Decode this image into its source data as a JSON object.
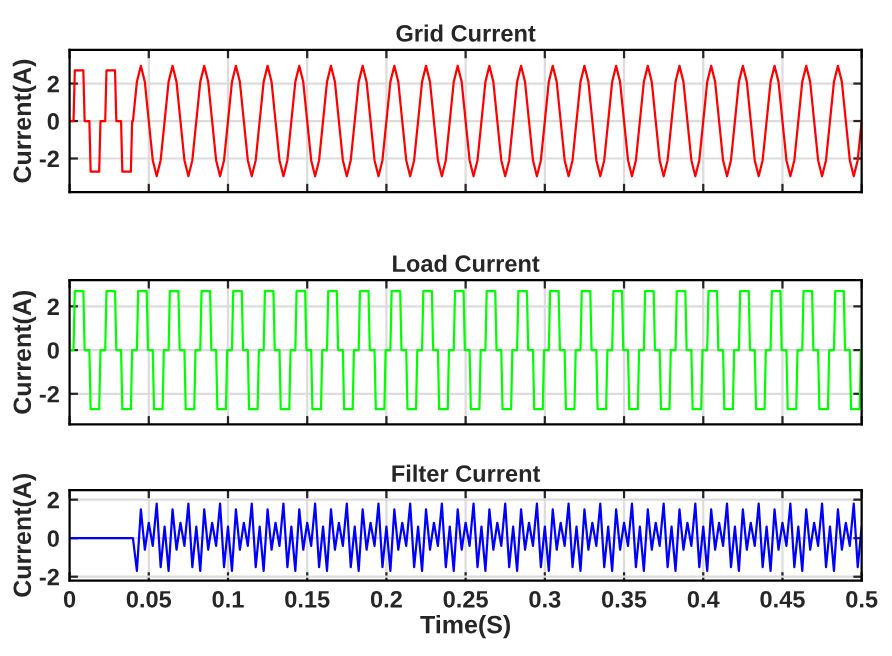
{
  "chart_data": [
    {
      "type": "line",
      "title": "Grid Current",
      "ylabel": "Current(A)",
      "xlim": [
        0,
        0.5
      ],
      "ylim": [
        -3.8,
        3.8
      ],
      "xticks": [
        0,
        0.05,
        0.1,
        0.15,
        0.2,
        0.25,
        0.3,
        0.35,
        0.4,
        0.45,
        0.5
      ],
      "yticks": [
        -2,
        0,
        2
      ],
      "grid": true,
      "tick_labels": "y",
      "series": [
        {
          "color": "#ff0000",
          "x": [
            0,
            0.0025,
            0.0033,
            0.0087,
            0.0095,
            0.0125,
            0.0133,
            0.0187,
            0.0195,
            0.0225,
            0.0233,
            0.0287,
            0.0295,
            0.0325,
            0.0333,
            0.0387,
            0.0395,
            0.04,
            0.0425,
            0.045,
            0.0475,
            0.05,
            0.0525,
            0.055,
            0.0575,
            0.06,
            0.0625,
            0.065,
            0.0675,
            0.07,
            0.0725,
            0.075,
            0.0775,
            0.08,
            0.0825,
            0.085,
            0.0875,
            0.09,
            0.0925,
            0.095,
            0.0975,
            0.1,
            0.1025,
            0.105,
            0.1075,
            0.11,
            0.1125,
            0.115,
            0.1175,
            0.12,
            0.1225,
            0.125,
            0.1275,
            0.13,
            0.1325,
            0.135,
            0.1375,
            0.14,
            0.1425,
            0.145,
            0.1475,
            0.15,
            0.1525,
            0.155,
            0.1575,
            0.16,
            0.1625,
            0.165,
            0.1675,
            0.17,
            0.1725,
            0.175,
            0.1775,
            0.18,
            0.1825,
            0.185,
            0.1875,
            0.19,
            0.1925,
            0.195,
            0.1975,
            0.2,
            0.2025,
            0.205,
            0.2075,
            0.21,
            0.2125,
            0.215,
            0.2175,
            0.22,
            0.2225,
            0.225,
            0.2275,
            0.23,
            0.2325,
            0.235,
            0.2375,
            0.24,
            0.2425,
            0.245,
            0.2475,
            0.25,
            0.2525,
            0.255,
            0.2575,
            0.26,
            0.2625,
            0.265,
            0.2675,
            0.27,
            0.2725,
            0.275,
            0.2775,
            0.28,
            0.2825,
            0.285,
            0.2875,
            0.29,
            0.2925,
            0.295,
            0.2975,
            0.3,
            0.3025,
            0.305,
            0.3075,
            0.31,
            0.3125,
            0.315,
            0.3175,
            0.32,
            0.3225,
            0.325,
            0.3275,
            0.33,
            0.3325,
            0.335,
            0.3375,
            0.34,
            0.3425,
            0.345,
            0.3475,
            0.35,
            0.3525,
            0.355,
            0.3575,
            0.36,
            0.3625,
            0.365,
            0.3675,
            0.37,
            0.3725,
            0.375,
            0.3775,
            0.38,
            0.3825,
            0.385,
            0.3875,
            0.39,
            0.3925,
            0.395,
            0.3975,
            0.4,
            0.4025,
            0.405,
            0.4075,
            0.41,
            0.4125,
            0.415,
            0.4175,
            0.42,
            0.4225,
            0.425,
            0.4275,
            0.43,
            0.4325,
            0.435,
            0.4375,
            0.44,
            0.4425,
            0.445,
            0.4475,
            0.45,
            0.4525,
            0.455,
            0.4575,
            0.46,
            0.4625,
            0.465,
            0.4675,
            0.47,
            0.4725,
            0.475,
            0.4775,
            0.48,
            0.4825,
            0.485,
            0.4875,
            0.49,
            0.4925,
            0.495,
            0.4975,
            0.5
          ],
          "values": [
            0,
            0,
            2.7,
            2.7,
            0,
            0,
            -2.7,
            -2.7,
            0,
            0,
            2.7,
            2.7,
            0,
            0,
            -2.7,
            -2.7,
            0,
            0,
            2.09,
            2.95,
            2.09,
            0,
            -2.09,
            -2.95,
            -2.09,
            0,
            2.09,
            2.95,
            2.09,
            0,
            -2.09,
            -2.95,
            -2.09,
            0,
            2.09,
            2.95,
            2.09,
            0,
            -2.09,
            -2.95,
            -2.09,
            0,
            2.09,
            2.95,
            2.09,
            0,
            -2.09,
            -2.95,
            -2.09,
            0,
            2.09,
            2.95,
            2.09,
            0,
            -2.09,
            -2.95,
            -2.09,
            0,
            2.09,
            2.95,
            2.09,
            0,
            -2.09,
            -2.95,
            -2.09,
            0,
            2.09,
            2.95,
            2.09,
            0,
            -2.09,
            -2.95,
            -2.09,
            0,
            2.09,
            2.95,
            2.09,
            0,
            -2.09,
            -2.95,
            -2.09,
            0,
            2.09,
            2.95,
            2.09,
            0,
            -2.09,
            -2.95,
            -2.09,
            0,
            2.09,
            2.95,
            2.09,
            0,
            -2.09,
            -2.95,
            -2.09,
            0,
            2.09,
            2.95,
            2.09,
            0,
            -2.09,
            -2.95,
            -2.09,
            0,
            2.09,
            2.95,
            2.09,
            0,
            -2.09,
            -2.95,
            -2.09,
            0,
            2.09,
            2.95,
            2.09,
            0,
            -2.09,
            -2.95,
            -2.09,
            0,
            2.09,
            2.95,
            2.09,
            0,
            -2.09,
            -2.95,
            -2.09,
            0,
            2.09,
            2.95,
            2.09,
            0,
            -2.09,
            -2.95,
            -2.09,
            0,
            2.09,
            2.95,
            2.09,
            0,
            -2.09,
            -2.95,
            -2.09,
            0,
            2.09,
            2.95,
            2.09,
            0,
            -2.09,
            -2.95,
            -2.09,
            0,
            2.09,
            2.95,
            2.09,
            0,
            -2.09,
            -2.95,
            -2.09,
            0,
            2.09,
            2.95,
            2.09,
            0,
            -2.09,
            -2.95,
            -2.09,
            0,
            2.09,
            2.95,
            2.09,
            0,
            -2.09,
            -2.95,
            -2.09,
            0,
            2.09,
            2.95,
            2.09,
            0,
            -2.09,
            -2.95,
            -2.09,
            0,
            2.09,
            2.95,
            2.09,
            0,
            -2.09,
            -2.95,
            -2.09,
            0,
            2.09,
            2.95,
            2.09,
            0,
            -2.09,
            -2.95,
            -2.09,
            0
          ]
        }
      ]
    },
    {
      "type": "line",
      "title": "Load Current",
      "ylabel": "Current(A)",
      "xlim": [
        0,
        0.5
      ],
      "ylim": [
        -3.4,
        3.2
      ],
      "xticks": [
        0,
        0.05,
        0.1,
        0.15,
        0.2,
        0.25,
        0.3,
        0.35,
        0.4,
        0.45,
        0.5
      ],
      "yticks": [
        -2,
        0,
        2
      ],
      "grid": true,
      "tick_labels": "y",
      "series": [
        {
          "color": "#00ff00",
          "x": [
            0,
            0.0025,
            0.0033,
            0.0087,
            0.0095,
            0.0125,
            0.0133,
            0.0187,
            0.0195,
            0.0225,
            0.0233,
            0.0287,
            0.0295,
            0.0325,
            0.0333,
            0.0387,
            0.0395,
            0.0425,
            0.0433,
            0.0487,
            0.0495,
            0.0525,
            0.0533,
            0.0587,
            0.0595,
            0.0625,
            0.0633,
            0.0687,
            0.0695,
            0.0725,
            0.0733,
            0.0787,
            0.0795,
            0.0825,
            0.0833,
            0.0887,
            0.0895,
            0.0925,
            0.0933,
            0.0987,
            0.0995,
            0.1025,
            0.1033,
            0.1087,
            0.1095,
            0.1125,
            0.1133,
            0.1187,
            0.1195,
            0.1225,
            0.1233,
            0.1287,
            0.1295,
            0.1325,
            0.1333,
            0.1387,
            0.1395,
            0.1425,
            0.1433,
            0.1487,
            0.1495,
            0.1525,
            0.1533,
            0.1587,
            0.1595,
            0.1625,
            0.1633,
            0.1687,
            0.1695,
            0.1725,
            0.1733,
            0.1787,
            0.1795,
            0.1825,
            0.1833,
            0.1887,
            0.1895,
            0.1925,
            0.1933,
            0.1987,
            0.1995,
            0.2025,
            0.2033,
            0.2087,
            0.2095,
            0.2125,
            0.2133,
            0.2187,
            0.2195,
            0.2225,
            0.2233,
            0.2287,
            0.2295,
            0.2325,
            0.2333,
            0.2387,
            0.2395,
            0.2425,
            0.2433,
            0.2487,
            0.2495,
            0.2525,
            0.2533,
            0.2587,
            0.2595,
            0.2625,
            0.2633,
            0.2687,
            0.2695,
            0.2725,
            0.2733,
            0.2787,
            0.2795,
            0.2825,
            0.2833,
            0.2887,
            0.2895,
            0.2925,
            0.2933,
            0.2987,
            0.2995,
            0.3025,
            0.3033,
            0.3087,
            0.3095,
            0.3125,
            0.3133,
            0.3187,
            0.3195,
            0.3225,
            0.3233,
            0.3287,
            0.3295,
            0.3325,
            0.3333,
            0.3387,
            0.3395,
            0.3425,
            0.3433,
            0.3487,
            0.3495,
            0.3525,
            0.3533,
            0.3587,
            0.3595,
            0.3625,
            0.3633,
            0.3687,
            0.3695,
            0.3725,
            0.3733,
            0.3787,
            0.3795,
            0.3825,
            0.3833,
            0.3887,
            0.3895,
            0.3925,
            0.3933,
            0.3987,
            0.3995,
            0.4025,
            0.4033,
            0.4087,
            0.4095,
            0.4125,
            0.4133,
            0.4187,
            0.4195,
            0.4225,
            0.4233,
            0.4287,
            0.4295,
            0.4325,
            0.4333,
            0.4387,
            0.4395,
            0.4425,
            0.4433,
            0.4487,
            0.4495,
            0.4525,
            0.4533,
            0.4587,
            0.4595,
            0.4625,
            0.4633,
            0.4687,
            0.4695,
            0.4725,
            0.4733,
            0.4787,
            0.4795,
            0.4825,
            0.4833,
            0.4887,
            0.4895,
            0.4925,
            0.4933,
            0.4987,
            0.4995
          ],
          "values": [
            0,
            0,
            2.7,
            2.7,
            0,
            0,
            -2.7,
            -2.7,
            0,
            0,
            2.7,
            2.7,
            0,
            0,
            -2.7,
            -2.7,
            0,
            0,
            2.7,
            2.7,
            0,
            0,
            -2.7,
            -2.7,
            0,
            0,
            2.7,
            2.7,
            0,
            0,
            -2.7,
            -2.7,
            0,
            0,
            2.7,
            2.7,
            0,
            0,
            -2.7,
            -2.7,
            0,
            0,
            2.7,
            2.7,
            0,
            0,
            -2.7,
            -2.7,
            0,
            0,
            2.7,
            2.7,
            0,
            0,
            -2.7,
            -2.7,
            0,
            0,
            2.7,
            2.7,
            0,
            0,
            -2.7,
            -2.7,
            0,
            0,
            2.7,
            2.7,
            0,
            0,
            -2.7,
            -2.7,
            0,
            0,
            2.7,
            2.7,
            0,
            0,
            -2.7,
            -2.7,
            0,
            0,
            2.7,
            2.7,
            0,
            0,
            -2.7,
            -2.7,
            0,
            0,
            2.7,
            2.7,
            0,
            0,
            -2.7,
            -2.7,
            0,
            0,
            2.7,
            2.7,
            0,
            0,
            -2.7,
            -2.7,
            0,
            0,
            2.7,
            2.7,
            0,
            0,
            -2.7,
            -2.7,
            0,
            0,
            2.7,
            2.7,
            0,
            0,
            -2.7,
            -2.7,
            0,
            0,
            2.7,
            2.7,
            0,
            0,
            -2.7,
            -2.7,
            0,
            0,
            2.7,
            2.7,
            0,
            0,
            -2.7,
            -2.7,
            0,
            0,
            2.7,
            2.7,
            0,
            0,
            -2.7,
            -2.7,
            0,
            0,
            2.7,
            2.7,
            0,
            0,
            -2.7,
            -2.7,
            0,
            0,
            2.7,
            2.7,
            0,
            0,
            -2.7,
            -2.7,
            0,
            0,
            2.7,
            2.7,
            0,
            0,
            -2.7,
            -2.7,
            0,
            0,
            2.7,
            2.7,
            0,
            0,
            -2.7,
            -2.7,
            0,
            0,
            2.7,
            2.7,
            0,
            0,
            -2.7,
            -2.7,
            0,
            0,
            2.7,
            2.7,
            0,
            0,
            -2.7,
            -2.7,
            0,
            0,
            2.7,
            2.7,
            0,
            0,
            -2.7,
            -2.7,
            0
          ]
        }
      ]
    },
    {
      "type": "line",
      "title": "Filter Current",
      "xlabel": "Time(S)",
      "ylabel": "Current(A)",
      "xlim": [
        0,
        0.5
      ],
      "ylim": [
        -2.2,
        2.5
      ],
      "xticks": [
        0,
        0.05,
        0.1,
        0.15,
        0.2,
        0.25,
        0.3,
        0.35,
        0.4,
        0.45,
        0.5
      ],
      "yticks": [
        -2,
        0,
        2
      ],
      "grid": true,
      "series": [
        {
          "color": "#0000ff",
          "x": [
            0,
            0.04,
            0.0425,
            0.045,
            0.0475,
            0.05,
            0.0525,
            0.055,
            0.0575,
            0.06,
            0.0625,
            0.065,
            0.0675,
            0.07,
            0.0725,
            0.075,
            0.0775,
            0.08,
            0.0825,
            0.085,
            0.0875,
            0.09,
            0.0925,
            0.095,
            0.0975,
            0.1,
            0.1025,
            0.105,
            0.1075,
            0.11,
            0.1125,
            0.115,
            0.1175,
            0.12,
            0.1225,
            0.125,
            0.1275,
            0.13,
            0.1325,
            0.135,
            0.1375,
            0.14,
            0.1425,
            0.145,
            0.1475,
            0.15,
            0.1525,
            0.155,
            0.1575,
            0.16,
            0.1625,
            0.165,
            0.1675,
            0.17,
            0.1725,
            0.175,
            0.1775,
            0.18,
            0.1825,
            0.185,
            0.1875,
            0.19,
            0.1925,
            0.195,
            0.1975,
            0.2,
            0.2025,
            0.205,
            0.2075,
            0.21,
            0.2125,
            0.215,
            0.2175,
            0.22,
            0.2225,
            0.225,
            0.2275,
            0.23,
            0.2325,
            0.235,
            0.2375,
            0.24,
            0.2425,
            0.245,
            0.2475,
            0.25,
            0.2525,
            0.255,
            0.2575,
            0.26,
            0.2625,
            0.265,
            0.2675,
            0.27,
            0.2725,
            0.275,
            0.2775,
            0.28,
            0.2825,
            0.285,
            0.2875,
            0.29,
            0.2925,
            0.295,
            0.2975,
            0.3,
            0.3025,
            0.305,
            0.3075,
            0.31,
            0.3125,
            0.315,
            0.3175,
            0.32,
            0.3225,
            0.325,
            0.3275,
            0.33,
            0.3325,
            0.335,
            0.3375,
            0.34,
            0.3425,
            0.345,
            0.3475,
            0.35,
            0.3525,
            0.355,
            0.3575,
            0.36,
            0.3625,
            0.365,
            0.3675,
            0.37,
            0.3725,
            0.375,
            0.3775,
            0.38,
            0.3825,
            0.385,
            0.3875,
            0.39,
            0.3925,
            0.395,
            0.3975,
            0.4,
            0.4025,
            0.405,
            0.4075,
            0.41,
            0.4125,
            0.415,
            0.4175,
            0.42,
            0.4225,
            0.425,
            0.4275,
            0.43,
            0.4325,
            0.435,
            0.4375,
            0.44,
            0.4425,
            0.445,
            0.4475,
            0.45,
            0.4525,
            0.455,
            0.4575,
            0.46,
            0.4625,
            0.465,
            0.4675,
            0.47,
            0.4725,
            0.475,
            0.4775,
            0.48,
            0.4825,
            0.485,
            0.4875,
            0.49,
            0.4925,
            0.495,
            0.4975,
            0.5
          ],
          "values": [
            0,
            0,
            -1.7,
            1.5,
            -0.6,
            0.8,
            -0.4,
            1.8,
            -1.5,
            0.6,
            -1.7,
            1.5,
            -0.6,
            0.8,
            -0.4,
            1.8,
            -1.5,
            0.6,
            -1.7,
            1.5,
            -0.6,
            0.8,
            -0.4,
            1.8,
            -1.5,
            0.6,
            -1.7,
            1.5,
            -0.6,
            0.8,
            -0.4,
            1.8,
            -1.5,
            0.6,
            -1.7,
            1.5,
            -0.6,
            0.8,
            -0.4,
            1.8,
            -1.5,
            0.6,
            -1.7,
            1.5,
            -0.6,
            0.8,
            -0.4,
            1.8,
            -1.5,
            0.6,
            -1.7,
            1.5,
            -0.6,
            0.8,
            -0.4,
            1.8,
            -1.5,
            0.6,
            -1.7,
            1.5,
            -0.6,
            0.8,
            -0.4,
            1.8,
            -1.5,
            0.6,
            -1.7,
            1.5,
            -0.6,
            0.8,
            -0.4,
            1.8,
            -1.5,
            0.6,
            -1.7,
            1.5,
            -0.6,
            0.8,
            -0.4,
            1.8,
            -1.5,
            0.6,
            -1.7,
            1.5,
            -0.6,
            0.8,
            -0.4,
            1.8,
            -1.5,
            0.6,
            -1.7,
            1.5,
            -0.6,
            0.8,
            -0.4,
            1.8,
            -1.5,
            0.6,
            -1.7,
            1.5,
            -0.6,
            0.8,
            -0.4,
            1.8,
            -1.5,
            0.6,
            -1.7,
            1.5,
            -0.6,
            0.8,
            -0.4,
            1.8,
            -1.5,
            0.6,
            -1.7,
            1.5,
            -0.6,
            0.8,
            -0.4,
            1.8,
            -1.5,
            0.6,
            -1.7,
            1.5,
            -0.6,
            0.8,
            -0.4,
            1.8,
            -1.5,
            0.6,
            -1.7,
            1.5,
            -0.6,
            0.8,
            -0.4,
            1.8,
            -1.5,
            0.6,
            -1.7,
            1.5,
            -0.6,
            0.8,
            -0.4,
            1.8,
            -1.5,
            0.6,
            -1.7,
            1.5,
            -0.6,
            0.8,
            -0.4,
            1.8,
            -1.5,
            0.6,
            -1.7,
            1.5,
            -0.6,
            0.8,
            -0.4,
            1.8,
            -1.5,
            0.6,
            -1.7,
            1.5,
            -0.6,
            0.8,
            -0.4,
            1.8,
            -1.5,
            0.6,
            -1.7,
            1.5,
            -0.6,
            0.8,
            -0.4,
            1.8,
            -1.5,
            0.6,
            -1.7,
            1.5,
            -0.6,
            0.8,
            -0.4,
            1.8,
            -1.5,
            0.6
          ]
        }
      ]
    }
  ]
}
